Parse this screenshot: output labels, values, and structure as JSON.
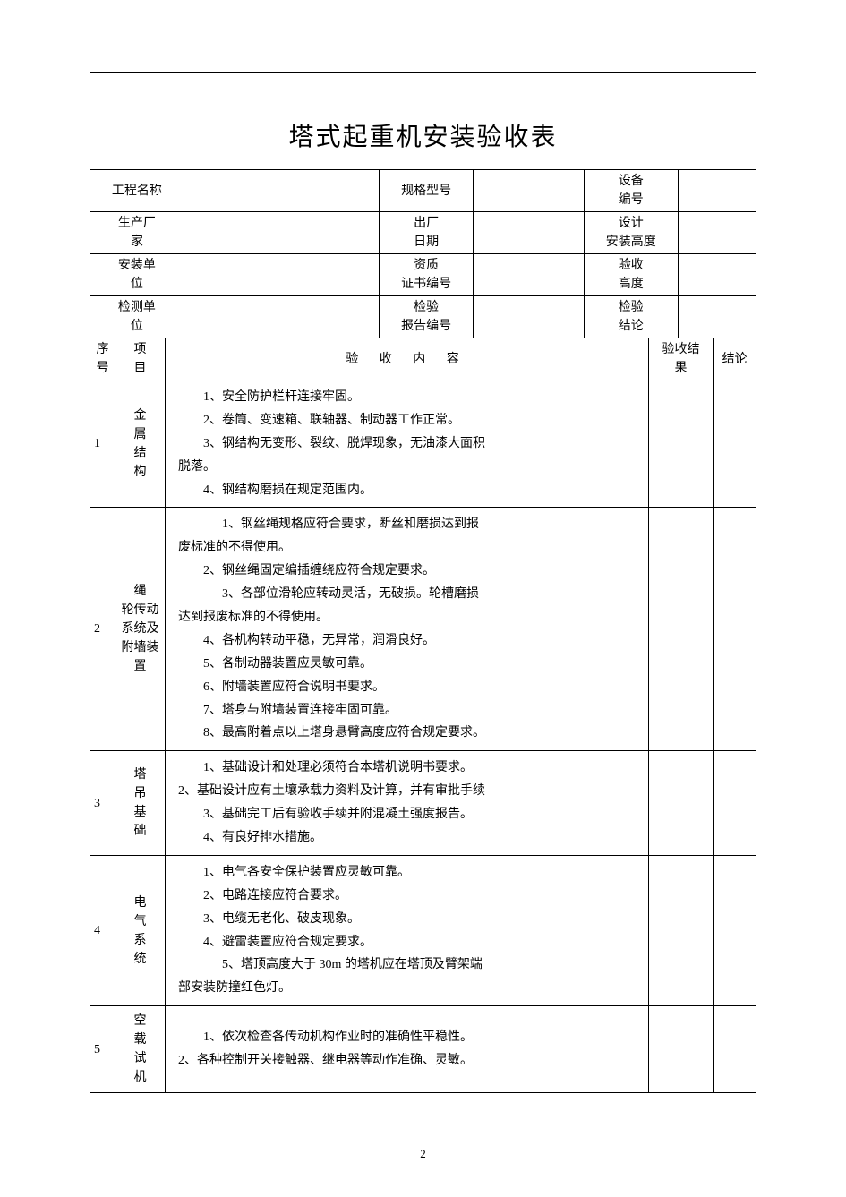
{
  "doc": {
    "title": "塔式起重机安装验收表",
    "page_number": "2"
  },
  "info": {
    "r1": {
      "l1": "工程名称",
      "v1": "",
      "l2": "规格型号",
      "v2": "",
      "l3": "设备\n编号",
      "v3": ""
    },
    "r2": {
      "l1": "生产厂\n家",
      "v1": "",
      "l2": "出厂\n日期",
      "v2": "",
      "l3": "设计\n安装高度",
      "v3": ""
    },
    "r3": {
      "l1": "安装单\n位",
      "v1": "",
      "l2": "资质\n证书编号",
      "v2": "",
      "l3": "验收\n高度",
      "v3": ""
    },
    "r4": {
      "l1": "检测单\n位",
      "v1": "",
      "l2": "检验\n报告编号",
      "v2": "",
      "l3": "检验\n结论",
      "v3": ""
    }
  },
  "headers": {
    "seq": "序\n号",
    "item": "项\n目",
    "content": "验  收  内  容",
    "result": "验收结\n果",
    "conclusion": "结论"
  },
  "rows": [
    {
      "seq": "1",
      "item": "金\n属\n结\n构",
      "content": [
        {
          "indent": 1,
          "text": "1、安全防护栏杆连接牢固。"
        },
        {
          "indent": 1,
          "text": "2、卷筒、变速箱、联轴器、制动器工作正常。"
        },
        {
          "indent": 1,
          "text": "3、钢结构无变形、裂纹、脱焊现象，无油漆大面积"
        },
        {
          "indent": 0,
          "text": "脱落。"
        },
        {
          "indent": 1,
          "text": "4、钢结构磨损在规定范围内。"
        }
      ]
    },
    {
      "seq": "2",
      "item": "绳\n轮传动\n系统及\n附墙装\n置",
      "content": [
        {
          "indent": 2,
          "text": "1、钢丝绳规格应符合要求，断丝和磨损达到报"
        },
        {
          "indent": 0,
          "text": "废标准的不得使用。"
        },
        {
          "indent": 1,
          "text": "2、钢丝绳固定编插缠绕应符合规定要求。"
        },
        {
          "indent": 2,
          "text": "3、各部位滑轮应转动灵活，无破损。轮槽磨损"
        },
        {
          "indent": 0,
          "text": "达到报废标准的不得使用。"
        },
        {
          "indent": 1,
          "text": "4、各机构转动平稳，无异常，润滑良好。"
        },
        {
          "indent": 1,
          "text": "5、各制动器装置应灵敏可靠。"
        },
        {
          "indent": 1,
          "text": "6、附墙装置应符合说明书要求。"
        },
        {
          "indent": 1,
          "text": "7、塔身与附墙装置连接牢固可靠。"
        },
        {
          "indent": 1,
          "text": "8、最高附着点以上塔身悬臂高度应符合规定要求。"
        }
      ]
    },
    {
      "seq": "3",
      "item": "塔\n吊\n基\n础",
      "content": [
        {
          "indent": 1,
          "text": "1、基础设计和处理必须符合本塔机说明书要求。"
        },
        {
          "indent": 0,
          "text": "2、基础设计应有土壤承载力资料及计算，并有审批手续"
        },
        {
          "indent": 1,
          "text": "3、基础完工后有验收手续并附混凝土强度报告。"
        },
        {
          "indent": 1,
          "text": "4、有良好排水措施。"
        }
      ]
    },
    {
      "seq": "4",
      "item": "电\n气\n系\n统",
      "content": [
        {
          "indent": 1,
          "text": "1、电气各安全保护装置应灵敏可靠。"
        },
        {
          "indent": 1,
          "text": "2、电路连接应符合要求。"
        },
        {
          "indent": 1,
          "text": "3、电缆无老化、破皮现象。"
        },
        {
          "indent": 1,
          "text": "4、避雷装置应符合规定要求。"
        },
        {
          "indent": 2,
          "text": "5、塔顶高度大于 30m 的塔机应在塔顶及臂架端"
        },
        {
          "indent": 0,
          "text": "部安装防撞红色灯。"
        }
      ]
    },
    {
      "seq": "5",
      "item": "空\n载\n试\n机",
      "content": [
        {
          "indent": 1,
          "text": "1、依次检查各传动机构作业时的准确性平稳性。"
        },
        {
          "indent": 0,
          "text": "2、各种控制开关接触器、继电器等动作准确、灵敏。"
        }
      ]
    }
  ]
}
